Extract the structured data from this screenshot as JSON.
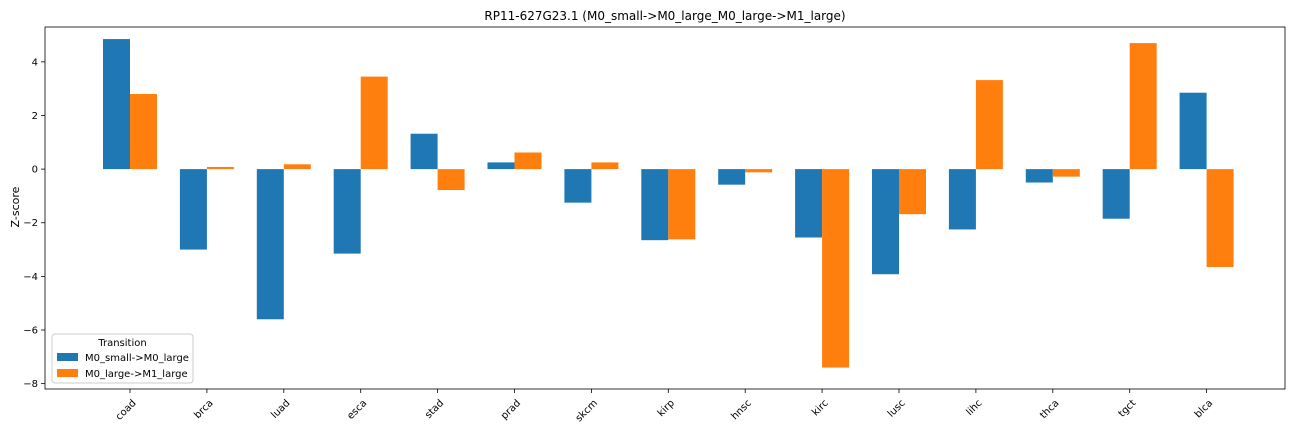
{
  "chart_data": {
    "type": "bar",
    "title": "RP11-627G23.1 (M0_small->M0_large_M0_large->M1_large)",
    "xlabel": "",
    "ylabel": "Z-score",
    "categories": [
      "coad",
      "brca",
      "luad",
      "esca",
      "stad",
      "prad",
      "skcm",
      "kirp",
      "hnsc",
      "kirc",
      "lusc",
      "lihc",
      "thca",
      "tgct",
      "blca"
    ],
    "series": [
      {
        "name": "M0_small->M0_large",
        "color": "#1f77b4",
        "values": [
          4.85,
          -3.0,
          -5.6,
          -3.15,
          1.32,
          0.25,
          -1.25,
          -2.65,
          -0.58,
          -2.55,
          -3.92,
          -2.25,
          -0.5,
          -1.85,
          2.85
        ]
      },
      {
        "name": "M0_large->M1_large",
        "color": "#ff7f0e",
        "values": [
          2.8,
          0.08,
          0.18,
          3.45,
          -0.78,
          0.62,
          0.25,
          -2.62,
          -0.12,
          -7.4,
          -1.68,
          3.32,
          -0.28,
          4.7,
          -3.65
        ]
      }
    ],
    "ylim": [
      -8.2,
      5.3
    ],
    "yticks": [
      -8,
      -6,
      -4,
      -2,
      0,
      2,
      4
    ],
    "legend": {
      "title": "Transition",
      "placement": "lower-left"
    },
    "grid": false
  }
}
